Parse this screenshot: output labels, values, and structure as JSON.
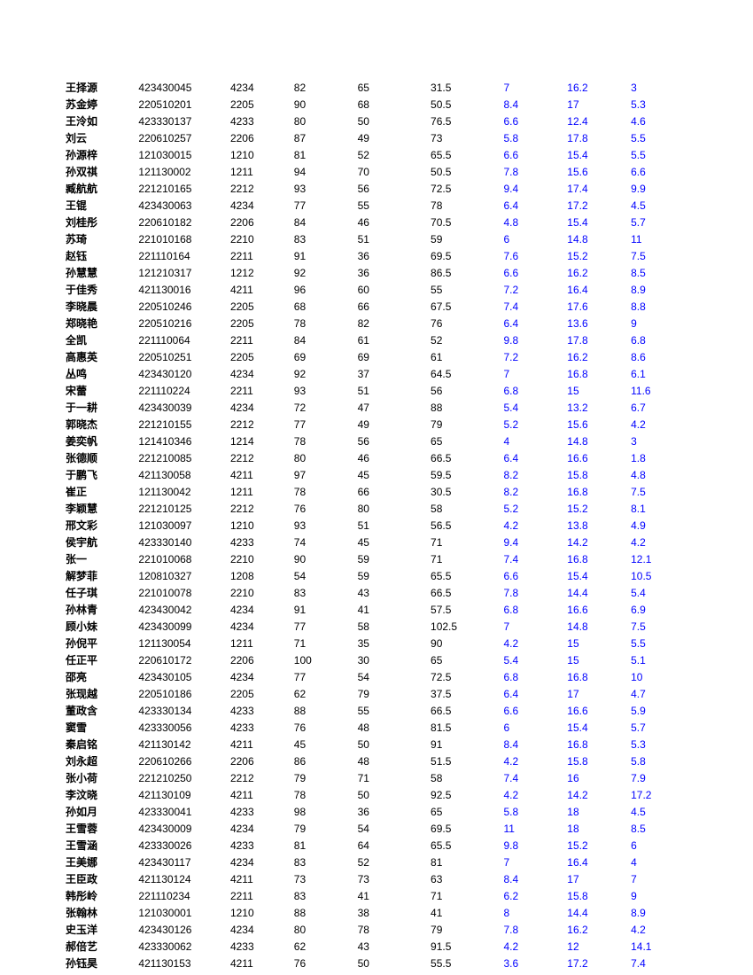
{
  "table": {
    "columns": [
      "name",
      "id",
      "c3",
      "c4",
      "c5",
      "c6",
      "c7",
      "c8",
      "c9"
    ],
    "column_colors": {
      "name": "#000000",
      "id": "#000000",
      "c3": "#000000",
      "c4": "#000000",
      "c5": "#000000",
      "c6": "#000000",
      "c7": "#0000ff",
      "c8": "#0000ff",
      "c9": "#0000ff"
    },
    "font_size": 12,
    "background_color": "#ffffff",
    "rows": [
      [
        "王择源",
        "423430045",
        "4234",
        "82",
        "65",
        "31.5",
        "7",
        "16.2",
        "3"
      ],
      [
        "苏金婷",
        "220510201",
        "2205",
        "90",
        "68",
        "50.5",
        "8.4",
        "17",
        "5.3"
      ],
      [
        "王泠如",
        "423330137",
        "4233",
        "80",
        "50",
        "76.5",
        "6.6",
        "12.4",
        "4.6"
      ],
      [
        "刘云",
        "220610257",
        "2206",
        "87",
        "49",
        "73",
        "5.8",
        "17.8",
        "5.5"
      ],
      [
        "孙源梓",
        "121030015",
        "1210",
        "81",
        "52",
        "65.5",
        "6.6",
        "15.4",
        "5.5"
      ],
      [
        "孙双祺",
        "121130002",
        "1211",
        "94",
        "70",
        "50.5",
        "7.8",
        "15.6",
        "6.6"
      ],
      [
        "臧航航",
        "221210165",
        "2212",
        "93",
        "56",
        "72.5",
        "9.4",
        "17.4",
        "9.9"
      ],
      [
        "王锟",
        "423430063",
        "4234",
        "77",
        "55",
        "78",
        "6.4",
        "17.2",
        "4.5"
      ],
      [
        "刘桂彤",
        "220610182",
        "2206",
        "84",
        "46",
        "70.5",
        "4.8",
        "15.4",
        "5.7"
      ],
      [
        "苏琦",
        "221010168",
        "2210",
        "83",
        "51",
        "59",
        "6",
        "14.8",
        "11"
      ],
      [
        "赵钰",
        "221110164",
        "2211",
        "91",
        "36",
        "69.5",
        "7.6",
        "15.2",
        "7.5"
      ],
      [
        "孙慧慧",
        "121210317",
        "1212",
        "92",
        "36",
        "86.5",
        "6.6",
        "16.2",
        "8.5"
      ],
      [
        "于佳秀",
        "421130016",
        "4211",
        "96",
        "60",
        "55",
        "7.2",
        "16.4",
        "8.9"
      ],
      [
        "李晓晨",
        "220510246",
        "2205",
        "68",
        "66",
        "67.5",
        "7.4",
        "17.6",
        "8.8"
      ],
      [
        "郑晓艳",
        "220510216",
        "2205",
        "78",
        "82",
        "76",
        "6.4",
        "13.6",
        "9"
      ],
      [
        "全凯",
        "221110064",
        "2211",
        "84",
        "61",
        "52",
        "9.8",
        "17.8",
        "6.8"
      ],
      [
        "高惠英",
        "220510251",
        "2205",
        "69",
        "69",
        "61",
        "7.2",
        "16.2",
        "8.6"
      ],
      [
        "丛鸣",
        "423430120",
        "4234",
        "92",
        "37",
        "64.5",
        "7",
        "16.8",
        "6.1"
      ],
      [
        "宋蕾",
        "221110224",
        "2211",
        "93",
        "51",
        "56",
        "6.8",
        "15",
        "11.6"
      ],
      [
        "于一耕",
        "423430039",
        "4234",
        "72",
        "47",
        "88",
        "5.4",
        "13.2",
        "6.7"
      ],
      [
        "郭晓杰",
        "221210155",
        "2212",
        "77",
        "49",
        "79",
        "5.2",
        "15.6",
        "4.2"
      ],
      [
        "姜奕帆",
        "121410346",
        "1214",
        "78",
        "56",
        "65",
        "4",
        "14.8",
        "3"
      ],
      [
        "张德顺",
        "221210085",
        "2212",
        "80",
        "46",
        "66.5",
        "6.4",
        "16.6",
        "1.8"
      ],
      [
        "于鹏飞",
        "421130058",
        "4211",
        "97",
        "45",
        "59.5",
        "8.2",
        "15.8",
        "4.8"
      ],
      [
        "崔正",
        "121130042",
        "1211",
        "78",
        "66",
        "30.5",
        "8.2",
        "16.8",
        "7.5"
      ],
      [
        "李颖慧",
        "221210125",
        "2212",
        "76",
        "80",
        "58",
        "5.2",
        "15.2",
        "8.1"
      ],
      [
        "邢文彩",
        "121030097",
        "1210",
        "93",
        "51",
        "56.5",
        "4.2",
        "13.8",
        "4.9"
      ],
      [
        "侯宇航",
        "423330140",
        "4233",
        "74",
        "45",
        "71",
        "9.4",
        "14.2",
        "4.2"
      ],
      [
        "张一",
        "221010068",
        "2210",
        "90",
        "59",
        "71",
        "7.4",
        "16.8",
        "12.1"
      ],
      [
        "解梦菲",
        "120810327",
        "1208",
        "54",
        "59",
        "65.5",
        "6.6",
        "15.4",
        "10.5"
      ],
      [
        "任子琪",
        "221010078",
        "2210",
        "83",
        "43",
        "66.5",
        "7.8",
        "14.4",
        "5.4"
      ],
      [
        "孙林青",
        "423430042",
        "4234",
        "91",
        "41",
        "57.5",
        "6.8",
        "16.6",
        "6.9"
      ],
      [
        "顾小妹",
        "423430099",
        "4234",
        "77",
        "58",
        "102.5",
        "7",
        "14.8",
        "7.5"
      ],
      [
        "孙倪平",
        "121130054",
        "1211",
        "71",
        "35",
        "90",
        "4.2",
        "15",
        "5.5"
      ],
      [
        "任正平",
        "220610172",
        "2206",
        "100",
        "30",
        "65",
        "5.4",
        "15",
        "5.1"
      ],
      [
        "邵亮",
        "423430105",
        "4234",
        "77",
        "54",
        "72.5",
        "6.8",
        "16.8",
        "10"
      ],
      [
        "张现越",
        "220510186",
        "2205",
        "62",
        "79",
        "37.5",
        "6.4",
        "17",
        "4.7"
      ],
      [
        "董政含",
        "423330134",
        "4233",
        "88",
        "55",
        "66.5",
        "6.6",
        "16.6",
        "5.9"
      ],
      [
        "窦雪",
        "423330056",
        "4233",
        "76",
        "48",
        "81.5",
        "6",
        "15.4",
        "5.7"
      ],
      [
        "秦启铭",
        "421130142",
        "4211",
        "45",
        "50",
        "91",
        "8.4",
        "16.8",
        "5.3"
      ],
      [
        "刘永超",
        "220610266",
        "2206",
        "86",
        "48",
        "51.5",
        "4.2",
        "15.8",
        "5.8"
      ],
      [
        "张小荷",
        "221210250",
        "2212",
        "79",
        "71",
        "58",
        "7.4",
        "16",
        "7.9"
      ],
      [
        "李汶晓",
        "421130109",
        "4211",
        "78",
        "50",
        "92.5",
        "4.2",
        "14.2",
        "17.2"
      ],
      [
        "孙如月",
        "423330041",
        "4233",
        "98",
        "36",
        "65",
        "5.8",
        "18",
        "4.5"
      ],
      [
        "王雪蓉",
        "423430009",
        "4234",
        "79",
        "54",
        "69.5",
        "11",
        "18",
        "8.5"
      ],
      [
        "王雪涵",
        "423330026",
        "4233",
        "81",
        "64",
        "65.5",
        "9.8",
        "15.2",
        "6"
      ],
      [
        "王美娜",
        "423430117",
        "4234",
        "83",
        "52",
        "81",
        "7",
        "16.4",
        "4"
      ],
      [
        "王臣政",
        "421130124",
        "4211",
        "73",
        "73",
        "63",
        "8.4",
        "17",
        "7"
      ],
      [
        "韩彤岭",
        "221110234",
        "2211",
        "83",
        "41",
        "71",
        "6.2",
        "15.8",
        "9"
      ],
      [
        "张翰林",
        "121030001",
        "1210",
        "88",
        "38",
        "41",
        "8",
        "14.4",
        "8.9"
      ],
      [
        "史玉洋",
        "423430126",
        "4234",
        "80",
        "78",
        "79",
        "7.8",
        "16.2",
        "4.2"
      ],
      [
        "郝倍艺",
        "423330062",
        "4233",
        "62",
        "43",
        "91.5",
        "4.2",
        "12",
        "14.1"
      ],
      [
        "孙钰昊",
        "421130153",
        "4211",
        "76",
        "50",
        "55.5",
        "3.6",
        "17.2",
        "7.4"
      ]
    ]
  }
}
